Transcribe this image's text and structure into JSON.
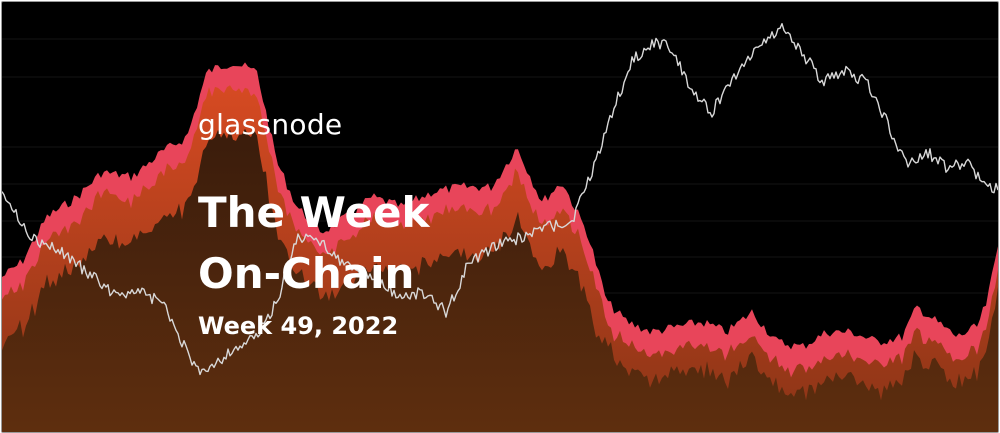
{
  "brand": "glassnode",
  "title_line1": "The Week",
  "title_line2": "On-Chain",
  "subtitle": "Week 49, 2022",
  "colors": {
    "background": "#000000",
    "layer_top": "#e8455a",
    "layer_middle": "#c8421f",
    "layer_bottom": "#4a2310",
    "price_line": "#d8d8d8"
  }
}
